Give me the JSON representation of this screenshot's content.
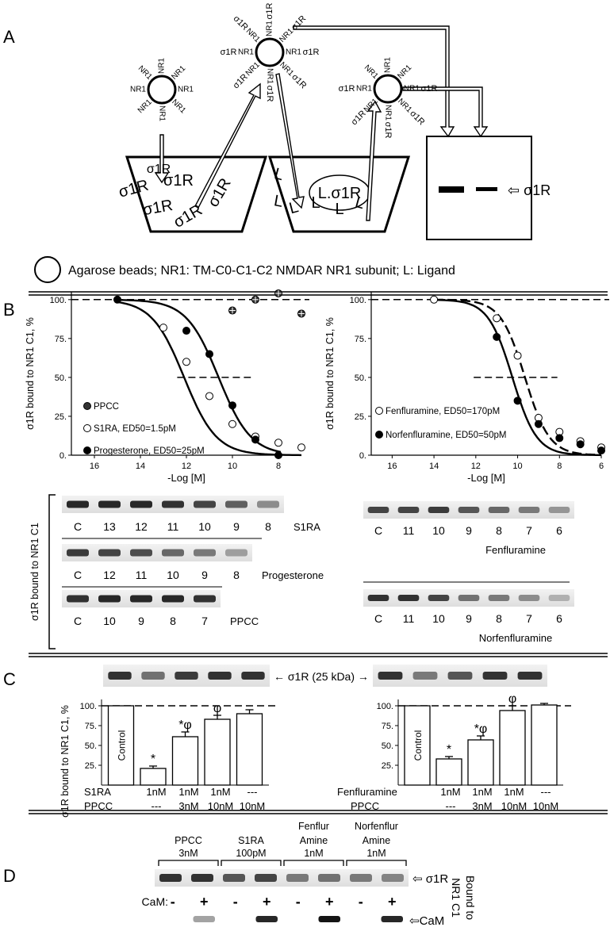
{
  "panels": {
    "a": "A",
    "b": "B",
    "c": "C",
    "d": "D"
  },
  "panel_a": {
    "nr1": "NR1",
    "s1r": "σ1R",
    "ligand": "L",
    "complex": "L.σ1R",
    "blot_arrow_label": "⇦ σ1R",
    "legend": "Agarose beads;  NR1: TM-C0-C1-C2  NMDAR NR1 subunit;  L: Ligand"
  },
  "chart_data": [
    {
      "type": "scatter",
      "panel": "B-left",
      "xlabel": "-Log [M]",
      "ylabel": "σ1R bound to NR1 C1, %",
      "xlim": [
        17,
        7
      ],
      "ylim": [
        0,
        105
      ],
      "xticks": [
        "16",
        "14",
        "12",
        "10",
        "8"
      ],
      "yticks": [
        "0.",
        "25.",
        "50.",
        "75.",
        "100."
      ],
      "series": [
        {
          "name": "PPCC",
          "x": [
            10,
            9,
            8,
            7
          ],
          "y": [
            93,
            100,
            104,
            91
          ]
        },
        {
          "name": "S1RA, ED50=1.5pM",
          "x": [
            13,
            12,
            11,
            10,
            9,
            8,
            7
          ],
          "y": [
            82,
            60,
            38,
            20,
            12,
            8,
            5
          ]
        },
        {
          "name": "Progesterone, ED50=25pM",
          "x": [
            15,
            12,
            11,
            10,
            9,
            8
          ],
          "y": [
            100,
            80,
            65,
            32,
            10,
            0
          ]
        }
      ]
    },
    {
      "type": "scatter",
      "panel": "B-right",
      "xlabel": "-Log [M]",
      "ylabel": "σ1R bound to NR1 C1, %",
      "xlim": [
        17,
        6
      ],
      "ylim": [
        0,
        105
      ],
      "xticks": [
        "16",
        "14",
        "12",
        "10",
        "8",
        "6"
      ],
      "yticks": [
        "0.",
        "25.",
        "50.",
        "75.",
        "100."
      ],
      "series": [
        {
          "name": "Fenfluramine, ED50=170pM",
          "x": [
            14,
            11,
            10,
            9,
            8,
            7,
            6
          ],
          "y": [
            100,
            88,
            64,
            24,
            15,
            9,
            5
          ]
        },
        {
          "name": "Norfenfluramine, ED50=50pM",
          "x": [
            11,
            10,
            9,
            8,
            7,
            6
          ],
          "y": [
            76,
            35,
            20,
            11,
            7,
            3
          ]
        }
      ]
    },
    {
      "type": "bar",
      "panel": "C-left",
      "ylabel": "σ1R bound to NR1 C1, %",
      "ylim": [
        0,
        100
      ],
      "yticks": [
        "25.",
        "50.",
        "75.",
        "100."
      ],
      "categories": [
        "Control",
        "1nM / ---",
        "1nM / 3nM",
        "1nM / 10nM",
        "--- / 10nM"
      ],
      "values": [
        100,
        21,
        61,
        83,
        90
      ],
      "errors": [
        0,
        3,
        6,
        5,
        5
      ],
      "marks": [
        "",
        "*",
        "*φ",
        "φ",
        ""
      ]
    },
    {
      "type": "bar",
      "panel": "C-right",
      "ylim": [
        0,
        100
      ],
      "yticks": [
        "25.",
        "50.",
        "75.",
        "100."
      ],
      "categories": [
        "Control",
        "1nM / ---",
        "1nM / 3nM",
        "1nM / 10nM",
        "--- / 10nM"
      ],
      "values": [
        100,
        33,
        57,
        94,
        101
      ],
      "errors": [
        0,
        3,
        5,
        6,
        2
      ],
      "marks": [
        "",
        "*",
        "*φ",
        "φ",
        ""
      ]
    }
  ],
  "panel_b": {
    "legend_left": [
      "PPCC",
      "S1RA, ED50=1.5pM",
      "Progesterone, ED50=25pM"
    ],
    "legend_right": [
      "Fenfluramine, ED50=170pM",
      "Norfenfluramine, ED50=50pM"
    ],
    "blot_ylabel": "σ1R bound to NR1 C1",
    "blots_left": [
      {
        "name": "S1RA",
        "lanes": [
          "C",
          "13",
          "12",
          "11",
          "10",
          "9",
          "8"
        ]
      },
      {
        "name": "Progesterone",
        "lanes": [
          "C",
          "12",
          "11",
          "10",
          "9",
          "8"
        ]
      },
      {
        "name": "PPCC",
        "lanes": [
          "C",
          "10",
          "9",
          "8",
          "7"
        ]
      }
    ],
    "blots_right": [
      {
        "name": "Fenfluramine",
        "lanes": [
          "C",
          "11",
          "10",
          "9",
          "8",
          "7",
          "6"
        ]
      },
      {
        "name": "Norfenfluramine",
        "lanes": [
          "C",
          "11",
          "10",
          "9",
          "8",
          "7",
          "6"
        ]
      }
    ]
  },
  "panel_c": {
    "band_label": "σ1R (25 kDa)",
    "control_label": "Control",
    "row1_left": "S1RA",
    "row1_right": "Fenfluramine",
    "row2": "PPCC",
    "row1_values": [
      "1nM",
      "1nM",
      "1nM",
      "---"
    ],
    "row2_values": [
      "---",
      "3nM",
      "10nM",
      "10nM"
    ]
  },
  "panel_d": {
    "groups": [
      {
        "line1": "",
        "line2": "PPCC",
        "line3": "3nM"
      },
      {
        "line1": "",
        "line2": "S1RA",
        "line3": "100pM"
      },
      {
        "line1": "Fenflur",
        "line2": "Amine",
        "line3": "1nM"
      },
      {
        "line1": "Norfenflur",
        "line2": "Amine",
        "line3": "1nM"
      }
    ],
    "cam_label": "CaM:",
    "signs": [
      "-",
      "+",
      "-",
      "+",
      "-",
      "+",
      "-",
      "+"
    ],
    "s1r_label": "⇦ σ1R",
    "cam_band_label": "⇦CaM",
    "side_line1": "Bound to",
    "side_line2": "NR1 C1"
  },
  "colors": {
    "ink": "#000000",
    "band": "#1a1a1a",
    "blot_bg": "#ececec"
  }
}
